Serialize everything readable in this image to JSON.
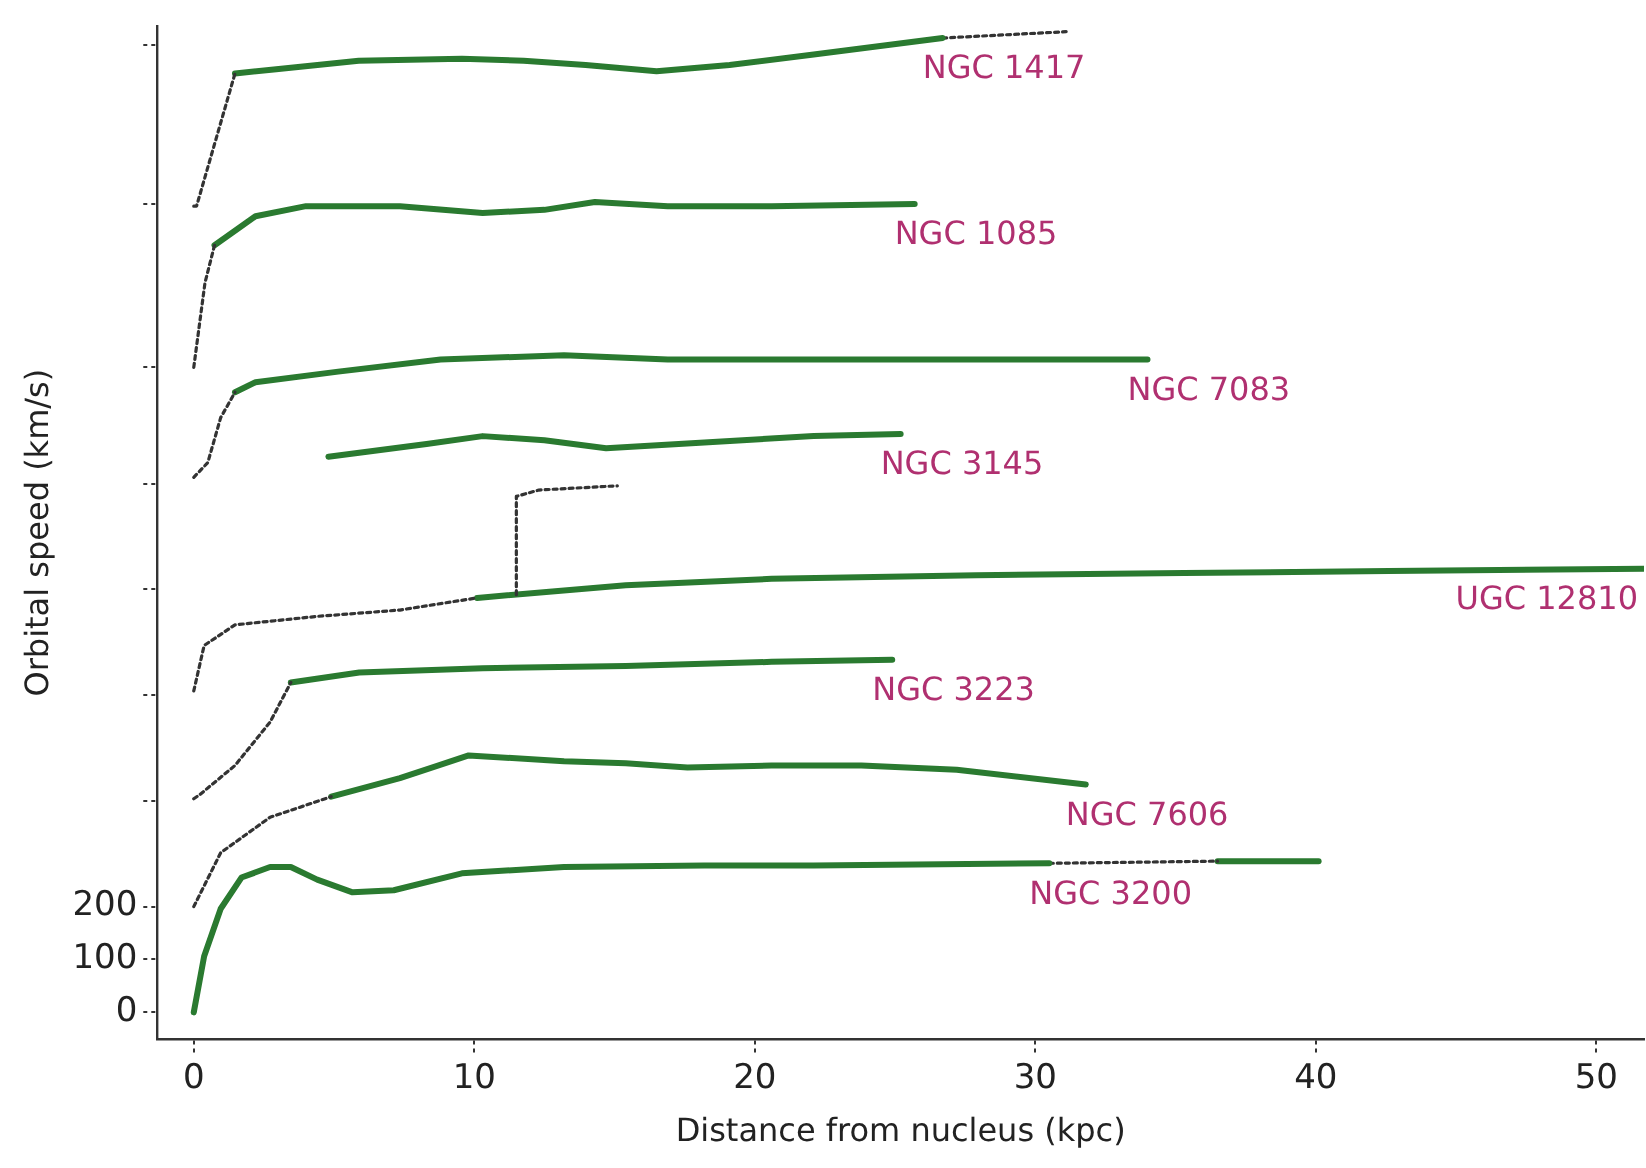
{
  "chart_data": {
    "type": "line",
    "xlabel": "Distance from nucleus (kpc)",
    "ylabel": "Orbital speed (km/s)",
    "xlim": [
      -1.3,
      51.7
    ],
    "xticks": [
      0,
      10,
      20,
      30,
      40,
      50
    ],
    "ylim": [
      -50,
      1865
    ],
    "yticks": [
      0,
      100,
      200,
      {
        "value": 400,
        "label": null
      },
      {
        "value": 600,
        "label": null
      },
      {
        "value": 800,
        "label": null
      },
      {
        "value": 1000,
        "label": null
      },
      {
        "value": 1220,
        "label": null
      },
      {
        "value": 1530,
        "label": null
      },
      {
        "value": 1830,
        "label": null
      }
    ],
    "grid": false,
    "series": [
      {
        "color": "#333333",
        "line_style": "dotted",
        "x": [
          0,
          0.1,
          1.47
        ],
        "values": [
          1525,
          1525,
          1776
        ]
      },
      {
        "name": "NGC 1417",
        "color": "#2a7a30",
        "x": [
          1.47,
          2.94,
          5.88,
          9.56,
          11.76,
          13.97,
          16.5,
          19.1,
          22.1,
          26.7
        ],
        "values": [
          1776,
          1784,
          1800,
          1804,
          1800,
          1792,
          1780,
          1792,
          1812,
          1843
        ]
      },
      {
        "color": "#333333",
        "line_style": "dotted",
        "x": [
          26.7,
          31.1
        ],
        "values": [
          1843,
          1855
        ]
      },
      {
        "color": "#333333",
        "line_style": "dotted",
        "x": [
          0,
          0.2,
          0.4,
          0.74
        ],
        "values": [
          1220,
          1300,
          1380,
          1451
        ]
      },
      {
        "name": "NGC 1085",
        "color": "#2a7a30",
        "x": [
          0.74,
          2.2,
          4.0,
          7.35,
          10.3,
          12.5,
          14.3,
          16.9,
          20.6,
          25.7
        ],
        "values": [
          1451,
          1506,
          1525,
          1525,
          1512,
          1518,
          1533,
          1525,
          1525,
          1529
        ]
      },
      {
        "color": "#333333",
        "line_style": "dotted",
        "x": [
          0,
          0.5,
          0.96,
          1.47
        ],
        "values": [
          1012,
          1040,
          1125,
          1173
        ]
      },
      {
        "name": "NGC 7083",
        "color": "#2a7a30",
        "x": [
          1.47,
          2.2,
          5.15,
          8.8,
          13.2,
          16.9,
          20.6,
          26.5,
          34.0
        ],
        "values": [
          1173,
          1192,
          1212,
          1235,
          1243,
          1235,
          1235,
          1235,
          1235
        ]
      },
      {
        "name": "NGC 3145",
        "color": "#2a7a30",
        "x": [
          4.8,
          8.3,
          10.3,
          12.5,
          14.7,
          18.2,
          22.1,
          25.2
        ],
        "values": [
          1051,
          1075,
          1090,
          1082,
          1067,
          1078,
          1090,
          1094
        ]
      },
      {
        "color": "#333333",
        "line_style": "dotted",
        "x": [
          0,
          0.37,
          1.47,
          4.4,
          7.35,
          10.1
        ],
        "values": [
          608,
          694,
          733,
          749,
          761,
          784
        ]
      },
      {
        "color": "#333333",
        "line_style": "dotted",
        "x": [
          11.5,
          11.5,
          12.3,
          15.1
        ],
        "values": [
          790,
          976,
          988,
          996
        ]
      },
      {
        "name": "UGC 12810",
        "color": "#2a7a30",
        "x": [
          10.1,
          15.4,
          20.6,
          27.9,
          35.3,
          42.6,
          51.7
        ],
        "values": [
          784,
          808,
          820,
          827,
          831,
          835,
          839
        ]
      },
      {
        "color": "#333333",
        "line_style": "dotted",
        "x": [
          0,
          0.22,
          1.47,
          2.72,
          3.46
        ],
        "values": [
          404,
          412,
          467,
          549,
          624
        ]
      },
      {
        "name": "NGC 3223",
        "color": "#2a7a30",
        "x": [
          3.46,
          5.9,
          10.3,
          15.4,
          20.6,
          24.9
        ],
        "values": [
          624,
          643,
          651,
          655,
          663,
          667
        ]
      },
      {
        "color": "#333333",
        "line_style": "dotted",
        "x": [
          0,
          0.96,
          2.72,
          4.9
        ],
        "values": [
          200,
          302,
          369,
          408
        ]
      },
      {
        "name": "NGC 7606",
        "color": "#2a7a30",
        "x": [
          4.9,
          7.35,
          9.8,
          13.2,
          15.4,
          17.6,
          20.6,
          23.8,
          27.2,
          31.8
        ],
        "values": [
          408,
          443,
          486,
          475,
          471,
          463,
          467,
          467,
          459,
          431
        ]
      },
      {
        "name": "NGC 3200",
        "color": "#2a7a30",
        "x": [
          0,
          0.37,
          0.96,
          1.7,
          2.72,
          3.46,
          4.4,
          5.66,
          7.13,
          9.56,
          13.2,
          18.2,
          22.1,
          30.5
        ],
        "values": [
          0,
          106,
          196,
          255,
          275,
          275,
          251,
          227,
          231,
          263,
          275,
          278,
          278,
          282
        ]
      },
      {
        "color": "#333333",
        "line_style": "dotted",
        "x": [
          30.5,
          36.5
        ],
        "values": [
          282,
          286
        ]
      },
      {
        "color": "#2a7a30",
        "x": [
          36.5,
          40.1
        ],
        "values": [
          286,
          286
        ]
      }
    ]
  }
}
